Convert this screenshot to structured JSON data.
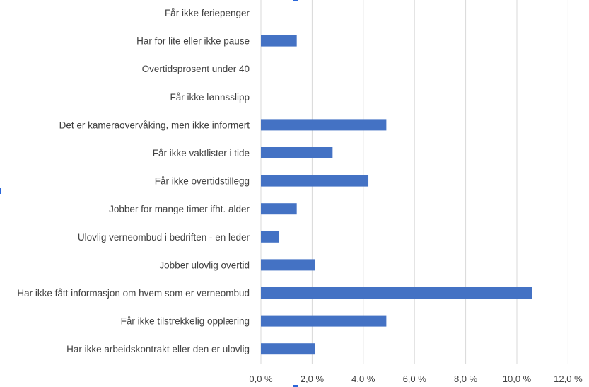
{
  "chart_data": {
    "type": "bar",
    "orientation": "horizontal",
    "categories": [
      "Får ikke feriepenger",
      "Har for lite eller ikke pause",
      "Overtidsprosent under 40",
      "Får ikke lønnsslipp",
      "Det er kameraovervåking, men ikke informert",
      "Får ikke vaktlister i tide",
      "Får ikke overtidstillegg",
      "Jobber for mange timer ifht. alder",
      "Ulovlig verneombud i bedriften - en leder",
      "Jobber ulovlig overtid",
      "Har ikke fått informasjon om hvem som er verneombud",
      "Får ikke tilstrekkelig opplæring",
      "Har ikke arbeidskontrakt eller den er ulovlig"
    ],
    "values": [
      0.0,
      1.4,
      0.0,
      0.0,
      4.9,
      2.8,
      4.2,
      1.4,
      0.7,
      2.1,
      10.6,
      4.9,
      2.1
    ],
    "xlim": [
      0,
      12
    ],
    "x_ticks": [
      "0,0 %",
      "2,0 %",
      "4,0 %",
      "6,0 %",
      "8,0 %",
      "10,0 %",
      "12,0 %"
    ],
    "x_tick_values": [
      0,
      2,
      4,
      6,
      8,
      10,
      12
    ],
    "bar_color": "#4472c4",
    "grid": "vertical",
    "legend": "none",
    "title": "",
    "xlabel": "",
    "ylabel": ""
  },
  "colors": {
    "gridline": "#d9d9d9",
    "text": "#404040",
    "edge_marker": "#2a66d9"
  }
}
